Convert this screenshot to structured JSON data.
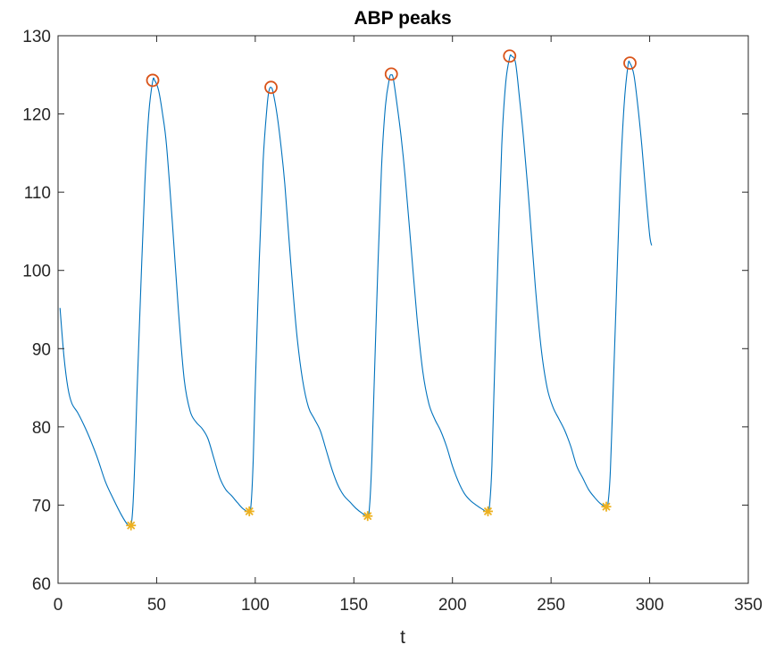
{
  "chart_data": {
    "type": "line",
    "title": "ABP peaks",
    "xlabel": "t",
    "ylabel": "",
    "xlim": [
      0,
      350
    ],
    "ylim": [
      60,
      130
    ],
    "x_ticks": [
      0,
      50,
      100,
      150,
      200,
      250,
      300,
      350
    ],
    "y_ticks": [
      60,
      70,
      80,
      90,
      100,
      110,
      120,
      130
    ],
    "grid": false,
    "colors": {
      "signal": "#0072BD",
      "peaks": "#D95319",
      "troughs": "#EDB120",
      "axis": "#262626"
    },
    "series": [
      {
        "kind": "signal",
        "x": [
          1,
          3,
          5,
          7,
          10,
          13,
          16,
          20,
          24,
          28,
          32,
          35,
          37,
          38,
          39,
          40,
          42,
          44,
          46,
          48,
          49,
          51,
          53,
          55,
          58,
          61,
          64,
          67,
          70,
          73,
          76,
          79,
          82,
          85,
          88,
          91,
          94,
          97,
          98,
          99,
          100,
          102,
          104,
          106,
          107,
          108,
          109,
          111,
          113,
          115,
          118,
          121,
          124,
          127,
          130,
          133,
          136,
          139,
          142,
          145,
          148,
          151,
          154,
          157,
          158,
          159,
          160,
          162,
          164,
          166,
          168,
          169,
          170,
          172,
          174,
          176,
          179,
          182,
          185,
          188,
          191,
          194,
          197,
          200,
          203,
          206,
          209,
          212,
          215,
          218,
          219,
          220,
          221,
          223,
          225,
          227,
          229,
          230,
          232,
          234,
          236,
          239,
          242,
          245,
          248,
          251,
          254,
          257,
          260,
          263,
          266,
          269,
          272,
          275,
          278,
          279,
          280,
          281,
          283,
          285,
          287,
          289,
          290,
          292,
          294,
          296,
          298,
          300,
          301
        ],
        "y": [
          95.2,
          89,
          85,
          83,
          81.8,
          80.3,
          78.6,
          76,
          73,
          70.8,
          68.8,
          67.6,
          67.4,
          70,
          76,
          84,
          98,
          111,
          120,
          124.2,
          124.3,
          123,
          120,
          116,
          106,
          95,
          86,
          82,
          80.6,
          79.8,
          78.5,
          76,
          73.5,
          72,
          71.2,
          70.3,
          69.5,
          69.2,
          70.5,
          76,
          85,
          101,
          114,
          121,
          123,
          123.4,
          122.8,
          120,
          116,
          111,
          101,
          92,
          86,
          82.5,
          81,
          79.5,
          77,
          74.5,
          72.5,
          71.2,
          70.4,
          69.6,
          69,
          68.6,
          70,
          75,
          83,
          99,
          113,
          121,
          124.5,
          125,
          124.5,
          121,
          117,
          112,
          103,
          94,
          87,
          83,
          81,
          79.5,
          77.5,
          75,
          73,
          71.5,
          70.6,
          70,
          69.5,
          69.2,
          70.5,
          75,
          84,
          101,
          116,
          124,
          127.2,
          127.4,
          126.5,
          122,
          117,
          108,
          98,
          90,
          85,
          82.5,
          81,
          79.5,
          77.5,
          75,
          73.5,
          72,
          71,
          70.2,
          69.8,
          70.5,
          74,
          81,
          96,
          111,
          121,
          126.2,
          126.5,
          125,
          121,
          116,
          110,
          104.5,
          103.2
        ]
      },
      {
        "kind": "peaks",
        "marker": "circle",
        "x": [
          48,
          108,
          169,
          229,
          290
        ],
        "y": [
          124.3,
          123.4,
          125.1,
          127.4,
          126.5
        ]
      },
      {
        "kind": "troughs",
        "marker": "asterisk",
        "x": [
          37,
          97,
          157,
          218,
          278
        ],
        "y": [
          67.4,
          69.2,
          68.6,
          69.2,
          69.8
        ]
      }
    ]
  }
}
